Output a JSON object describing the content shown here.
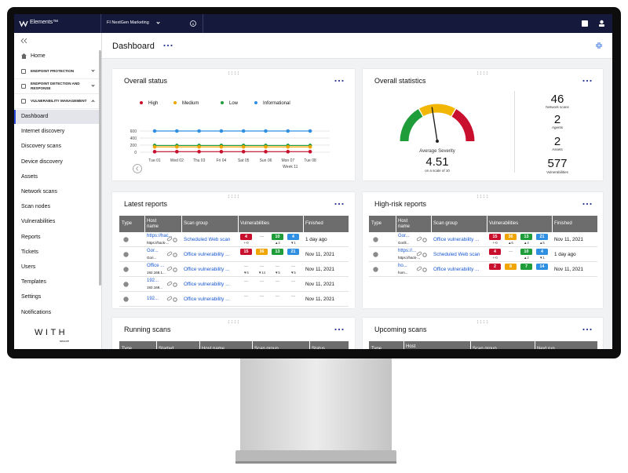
{
  "topbar": {
    "brand": "Elements™",
    "org": "FI NextGen Marketing"
  },
  "sidebar": {
    "home": "Home",
    "groups": [
      "ENDPOINT PROTECTION",
      "ENDPOINT DETECTION AND RESPONSE",
      "VULNERABILITY MANAGEMENT"
    ],
    "items": [
      "Dashboard",
      "Internet discovery",
      "Discovery scans",
      "Device discovery",
      "Assets",
      "Network scans",
      "Scan nodes",
      "Vulnerabilities",
      "Reports",
      "Tickets",
      "Users",
      "Templates",
      "Settings",
      "Notifications"
    ],
    "logo": "WITH",
    "logo_sub": "secure"
  },
  "page_title": "Dashboard",
  "overall_status": {
    "chart_data": {
      "type": "line",
      "title": "Overall status",
      "categories": [
        "Tue 01",
        "Wed 02",
        "Thu 03",
        "Fri 04",
        "Sat 05",
        "Sun 06",
        "Mon 07",
        "Tue 08"
      ],
      "x_group_label": "Week 11",
      "series": [
        {
          "name": "High",
          "color": "#c8102e",
          "values": [
            15,
            15,
            15,
            15,
            15,
            15,
            15,
            15
          ]
        },
        {
          "name": "Medium",
          "color": "#f0a500",
          "values": [
            150,
            150,
            150,
            150,
            150,
            150,
            150,
            150
          ]
        },
        {
          "name": "Low",
          "color": "#1f9d3a",
          "values": [
            190,
            190,
            190,
            190,
            190,
            190,
            190,
            190
          ]
        },
        {
          "name": "Informational",
          "color": "#2f8fe0",
          "values": [
            600,
            600,
            600,
            600,
            600,
            600,
            600,
            600
          ]
        }
      ],
      "ylim": [
        0,
        600
      ],
      "yticks": [
        0,
        200,
        400,
        600
      ],
      "grid": true
    }
  },
  "overall_statistics": {
    "title": "Overall statistics",
    "gauge": {
      "label": "Average Severity",
      "value": 4.51,
      "caption": "on a scale of 10",
      "range": [
        0,
        10
      ]
    },
    "counts": [
      {
        "value": 46,
        "label": "Network scans"
      },
      {
        "value": 2,
        "label": "Agents"
      },
      {
        "value": 2,
        "label": "Assets"
      },
      {
        "value": 577,
        "label": "Vulnerabilities"
      }
    ]
  },
  "latest_reports": {
    "title": "Latest reports",
    "columns": [
      "Type",
      "Host name",
      "Scan group",
      "Vulnerabilities",
      "Finished"
    ],
    "rows": [
      {
        "host": "https://hac...",
        "host_sub": "https://hack-...",
        "scan_group": "Scheduled Web scan",
        "vulnerabilities": [
          4,
          "—",
          10,
          4
        ],
        "changes": [
          "+-0",
          null,
          "▲2",
          "▼1"
        ],
        "finished": "1 day ago"
      },
      {
        "host": "Gor...",
        "host_sub": "Gori...",
        "scan_group": "Office vulnerability ...",
        "vulnerabilities": [
          15,
          36,
          13,
          21
        ],
        "finished": "Nov 11, 2021"
      },
      {
        "host": "Office ...",
        "host_sub": "192.168.1...",
        "scan_group": "Office vulnerability ...",
        "vulnerabilities": [
          "—",
          "—",
          "—",
          "—"
        ],
        "changes": [
          "▼6",
          "▼14",
          "▼5",
          "▼5"
        ],
        "finished": "Nov 11, 2021"
      },
      {
        "host": "192...",
        "host_sub": "192.168...",
        "scan_group": "Office vulnerability ...",
        "vulnerabilities": [
          "—",
          "—",
          "—",
          "—"
        ],
        "finished": "Nov 11, 2021"
      },
      {
        "host": "192...",
        "scan_group": "Office vulnerability ...",
        "vulnerabilities": [
          "—",
          "—",
          "—",
          "—"
        ],
        "finished": "Nov 11, 2021"
      }
    ]
  },
  "high_risk_reports": {
    "title": "High-risk reports",
    "columns": [
      "Type",
      "Host name",
      "Scan group",
      "Vulnerabilities",
      "Finished"
    ],
    "rows": [
      {
        "host": "Gor...",
        "host_sub": "Gorill...",
        "scan_group": "Office vulnerability ...",
        "vulnerabilities": [
          15,
          36,
          13,
          21
        ],
        "changes": [
          "+-0",
          "▲6",
          "▲4",
          "▲5"
        ],
        "finished": "Nov 11, 2021"
      },
      {
        "host": "https://...",
        "host_sub": "https://hack-...",
        "scan_group": "Scheduled Web scan",
        "vulnerabilities": [
          4,
          "—",
          10,
          4
        ],
        "changes": [
          "+-0",
          null,
          "▲2",
          "▼1"
        ],
        "finished": "1 day ago"
      },
      {
        "host": "ho...",
        "host_sub": "hom...",
        "scan_group": "Office vulnerability ...",
        "vulnerabilities": [
          2,
          8,
          7,
          14
        ],
        "finished": "Nov 11, 2021"
      }
    ]
  },
  "running_scans": {
    "title": "Running scans",
    "columns": [
      "Type",
      "Started",
      "Host name",
      "Scan group",
      "Status"
    ]
  },
  "upcoming_scans": {
    "title": "Upcoming scans",
    "columns": [
      "Type",
      "Host name",
      "Scan group",
      "Next run"
    ]
  }
}
